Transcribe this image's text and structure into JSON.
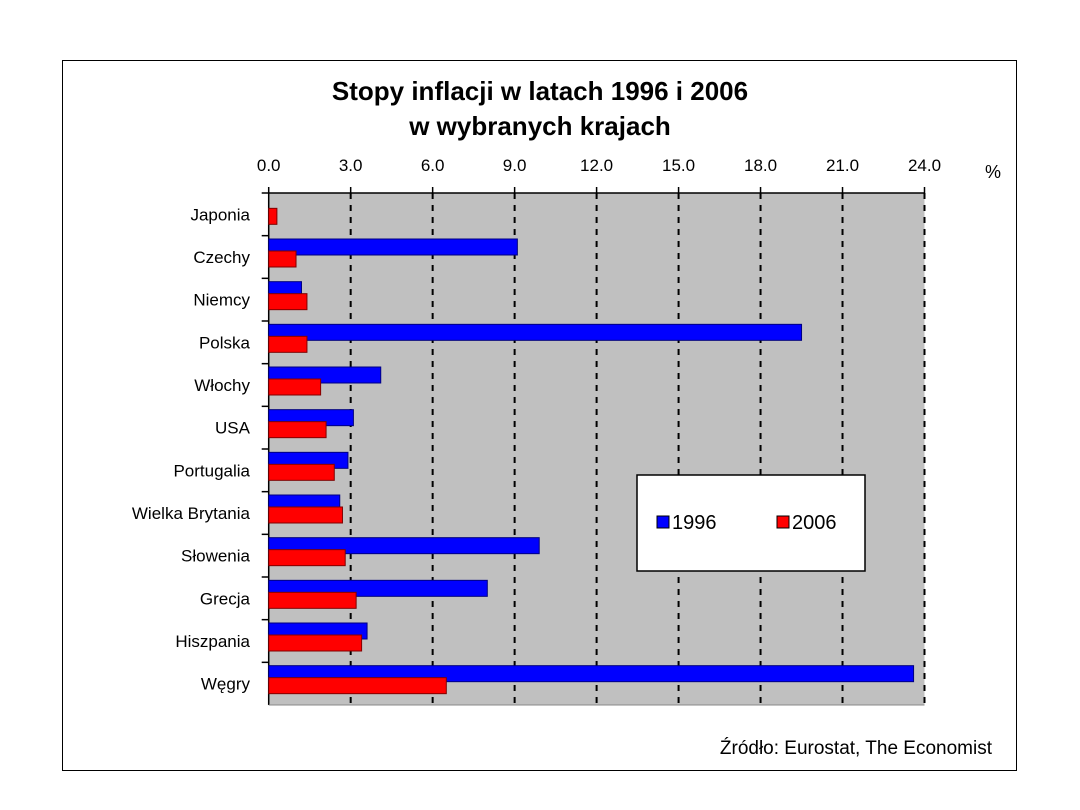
{
  "chart_data": {
    "type": "bar",
    "orientation": "horizontal",
    "title": [
      "Stopy inflacji w latach 1996 i 2006",
      "w wybranych krajach"
    ],
    "unit_label": "%",
    "categories": [
      "Japonia",
      "Czechy",
      "Niemcy",
      "Polska",
      "Włochy",
      "USA",
      "Portugalia",
      "Wielka Brytania",
      "Słowenia",
      "Grecja",
      "Hiszpania",
      "Węgry"
    ],
    "series": [
      {
        "name": "1996",
        "color": "#0000ff",
        "values": [
          0,
          9.1,
          1.2,
          19.5,
          4.1,
          3.1,
          2.9,
          2.6,
          9.9,
          8.0,
          3.6,
          23.6
        ]
      },
      {
        "name": "2006",
        "color": "#ff0000",
        "values": [
          0.3,
          1.0,
          1.4,
          1.4,
          1.9,
          2.1,
          2.4,
          2.7,
          2.8,
          3.2,
          3.4,
          6.5
        ]
      }
    ],
    "xlim": [
      0,
      24
    ],
    "xticks": [
      "0.0",
      "3.0",
      "6.0",
      "9.0",
      "12.0",
      "15.0",
      "18.0",
      "21.0",
      "24.0"
    ],
    "grid": true,
    "legend": "center-right inside plot",
    "plot_background": "#c0c0c0",
    "source": "Źródło: Eurostat, The Economist"
  }
}
